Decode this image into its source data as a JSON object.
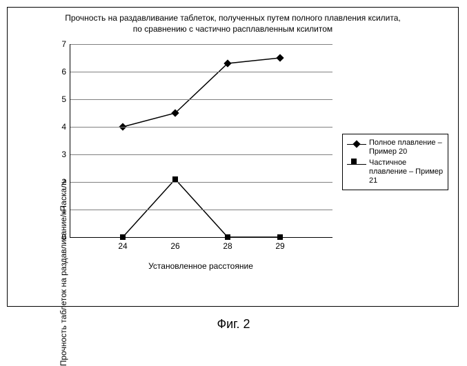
{
  "chart": {
    "title": "Прочность на раздавливание таблеток, полученных путем полного плавления ксилита, по сравнению с частично расплавленным ксилитом",
    "y_axis_label": "Прочность таблеток на раздавливание/кПаскаль",
    "x_axis_label": "Установленное расстояние",
    "ylim": [
      0,
      7
    ],
    "ytick_step": 1,
    "x_categories": [
      "24",
      "26",
      "28",
      "29"
    ],
    "grid_color": "#7f7f7f",
    "background_color": "#ffffff",
    "line_color": "#000000",
    "axis_fontsize": 12,
    "title_fontsize": 12,
    "series": [
      {
        "name": "Полное плавление – Пример 20",
        "marker": "diamond",
        "values": [
          4.0,
          4.5,
          6.3,
          6.5
        ]
      },
      {
        "name": "Частичное плавление – Пример 21",
        "marker": "square",
        "values": [
          0.0,
          2.1,
          0.0,
          0.0
        ]
      }
    ]
  },
  "figure_caption": "Фиг. 2"
}
